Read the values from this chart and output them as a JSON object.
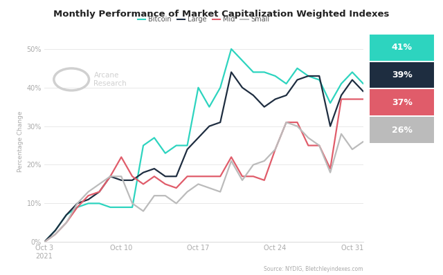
{
  "title": "Monthly Performance of Market Capitalization Weighted Indexes",
  "ylabel": "Percentage Change",
  "source": "Source: NYDIG, Bletchleyindexes.com",
  "background_color": "#ffffff",
  "plot_bg_color": "#ffffff",
  "grid_color": "#e8e8e8",
  "x_labels": [
    "Oct 3\n2021",
    "Oct 10",
    "Oct 17",
    "Oct 24",
    "Oct 31"
  ],
  "x_ticks": [
    0,
    7,
    14,
    21,
    28
  ],
  "ylim": [
    0,
    52
  ],
  "yticks": [
    0,
    10,
    20,
    30,
    40,
    50
  ],
  "ytick_labels": [
    "0%",
    "10%",
    "20%",
    "30%",
    "40%",
    "50%"
  ],
  "series_order": [
    "Bitcoin",
    "Large",
    "Mid",
    "Small"
  ],
  "series": {
    "Bitcoin": {
      "color": "#2dd4bf",
      "label": "Bitcoin",
      "final_pct": "41%",
      "badge_color": "#2dd4bf",
      "badge_text_color": "#ffffff",
      "data": [
        0,
        3,
        7,
        9,
        10,
        10,
        9,
        9,
        9,
        25,
        27,
        23,
        25,
        25,
        40,
        35,
        40,
        50,
        47,
        44,
        44,
        43,
        41,
        45,
        43,
        42,
        36,
        41,
        44,
        41
      ]
    },
    "Large": {
      "color": "#1e2d40",
      "label": "Large",
      "final_pct": "39%",
      "badge_color": "#1e2d40",
      "badge_text_color": "#ffffff",
      "data": [
        0,
        3,
        7,
        10,
        11,
        13,
        17,
        16,
        16,
        18,
        19,
        17,
        17,
        24,
        27,
        30,
        31,
        44,
        40,
        38,
        35,
        37,
        38,
        42,
        43,
        43,
        30,
        38,
        42,
        39
      ]
    },
    "Mid": {
      "color": "#e05c6a",
      "label": "Mid",
      "final_pct": "37%",
      "badge_color": "#e05c6a",
      "badge_text_color": "#ffffff",
      "data": [
        0,
        2,
        5,
        9,
        12,
        13,
        17,
        22,
        17,
        15,
        17,
        15,
        14,
        17,
        17,
        17,
        17,
        22,
        17,
        17,
        16,
        24,
        31,
        31,
        25,
        25,
        19,
        37,
        37,
        37
      ]
    },
    "Small": {
      "color": "#bbbbbb",
      "label": "Small",
      "final_pct": "26%",
      "badge_color": "#bbbbbb",
      "badge_text_color": "#ffffff",
      "data": [
        0,
        2,
        5,
        10,
        13,
        15,
        17,
        17,
        10,
        8,
        12,
        12,
        10,
        13,
        15,
        14,
        13,
        21,
        16,
        20,
        21,
        24,
        31,
        30,
        27,
        25,
        18,
        28,
        24,
        26
      ]
    }
  },
  "badge_info": [
    {
      "pct": "41%",
      "bg": "#2dd4bf",
      "fg": "#ffffff"
    },
    {
      "pct": "39%",
      "bg": "#1e2d40",
      "fg": "#ffffff"
    },
    {
      "pct": "37%",
      "bg": "#e05c6a",
      "fg": "#ffffff"
    },
    {
      "pct": "26%",
      "bg": "#bbbbbb",
      "fg": "#ffffff"
    }
  ]
}
